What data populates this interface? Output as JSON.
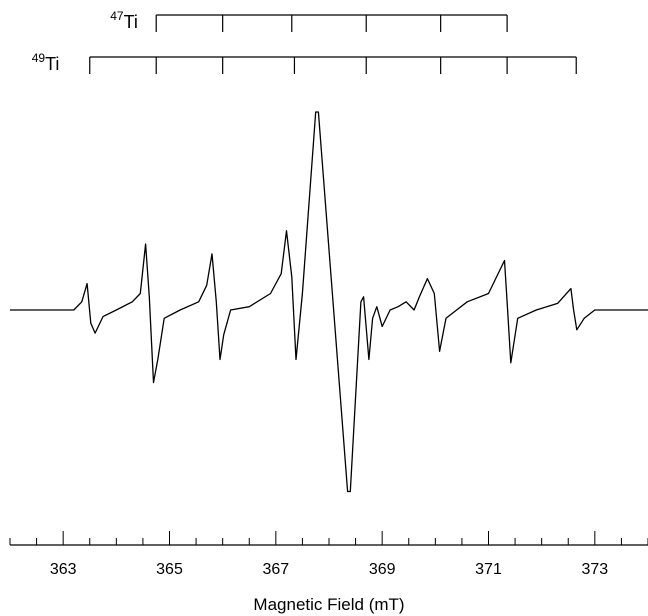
{
  "chart_data": {
    "type": "line",
    "title": "",
    "xlabel": "Magnetic Field (mT)",
    "ylabel": "",
    "xlim": [
      362.0,
      374.0
    ],
    "major_ticks": [
      363,
      365,
      367,
      369,
      371,
      373
    ],
    "minor_tick_step": 0.5,
    "grid": false,
    "legend": "none",
    "line_color": "#000000",
    "series": [
      {
        "values_note": "",
        "x": [
          362.0,
          363.2,
          363.35,
          363.45,
          363.52,
          363.6,
          363.75,
          364.0,
          364.3,
          364.45,
          364.55,
          364.62,
          364.7,
          364.78,
          364.9,
          365.2,
          365.55,
          365.7,
          365.8,
          365.88,
          365.95,
          366.02,
          366.15,
          366.5,
          366.9,
          367.1,
          367.2,
          367.3,
          367.38,
          367.5,
          367.75,
          367.8,
          368.35,
          368.4,
          368.6,
          368.65,
          368.75,
          368.82,
          368.9,
          369.0,
          369.15,
          369.3,
          369.45,
          369.6,
          369.7,
          369.85,
          369.98,
          370.08,
          370.2,
          370.4,
          370.6,
          371.0,
          371.3,
          371.35,
          371.42,
          371.55,
          371.9,
          372.3,
          372.55,
          372.6,
          372.66,
          372.8,
          373.0,
          373.5,
          374.0
        ],
        "y": [
          0.0,
          0.0,
          0.05,
          0.16,
          -0.08,
          -0.14,
          -0.04,
          0.0,
          0.05,
          0.1,
          0.4,
          0.08,
          -0.44,
          -0.3,
          -0.05,
          0.0,
          0.05,
          0.15,
          0.34,
          0.05,
          -0.3,
          -0.15,
          0.0,
          0.02,
          0.1,
          0.22,
          0.48,
          0.2,
          -0.3,
          0.1,
          1.2,
          1.2,
          -1.1,
          -1.1,
          0.05,
          0.08,
          -0.3,
          -0.05,
          0.02,
          -0.1,
          0.0,
          0.02,
          0.05,
          0.0,
          0.08,
          0.19,
          0.1,
          -0.25,
          -0.05,
          0.0,
          0.05,
          0.1,
          0.3,
          0.05,
          -0.32,
          -0.05,
          0.0,
          0.04,
          0.13,
          0.0,
          -0.12,
          -0.05,
          0.0,
          0.0,
          0.0
        ]
      }
    ],
    "stick_diagrams": [
      {
        "label_sup": "47",
        "label": "Ti",
        "lines": [
          364.75,
          366.0,
          367.3,
          368.7,
          370.1,
          371.35
        ]
      },
      {
        "label_sup": "49",
        "label": "Ti",
        "lines": [
          363.5,
          364.75,
          366.0,
          367.35,
          368.7,
          370.1,
          371.35,
          372.65
        ]
      }
    ]
  }
}
